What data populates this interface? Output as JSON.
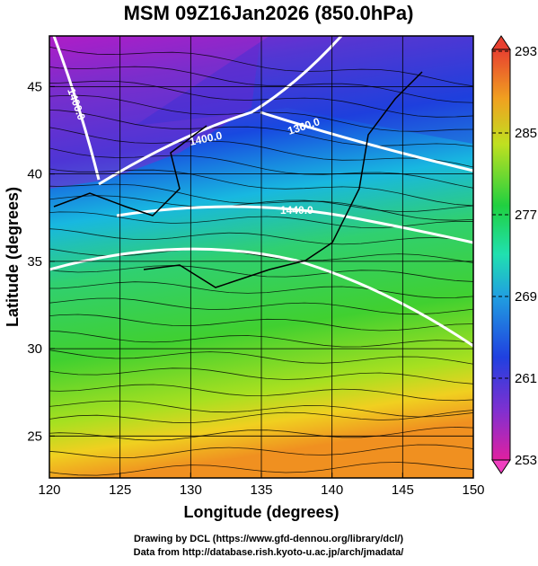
{
  "title": "MSM 09Z16Jan2026 (850.0hPa)",
  "map": {
    "xlabel": "Longitude (degrees)",
    "ylabel": "Latitude  (degrees)",
    "xlim": [
      120,
      150
    ],
    "xticks": [
      120,
      125,
      130,
      135,
      140,
      145,
      150
    ],
    "ylim": [
      22.6,
      47.9
    ],
    "yticks": [
      25,
      30,
      35,
      40,
      45
    ],
    "grid": true,
    "contour_labels": [
      "1360.0",
      "1400.0",
      "1440.0",
      "1400.0"
    ]
  },
  "colorbar": {
    "clim": [
      253,
      293
    ],
    "ticks": [
      253,
      261,
      269,
      277,
      285,
      293
    ]
  },
  "credits": [
    "Drawing by DCL (https://www.gfd-dennou.org/library/dcl/)",
    "Data from http://database.rish.kyoto-u.ac.jp/arch/jmadata/"
  ]
}
